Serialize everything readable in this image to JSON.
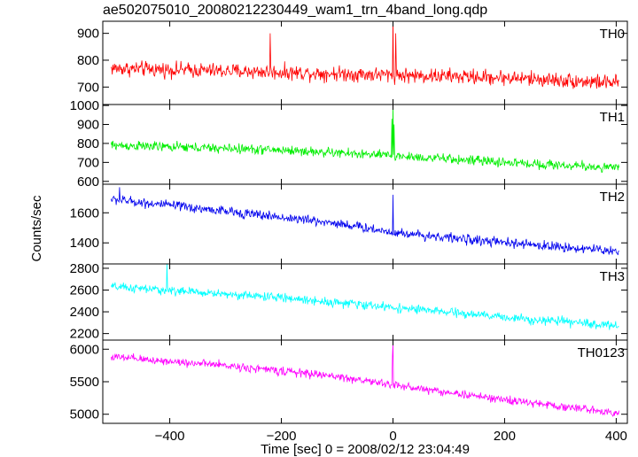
{
  "page_title": "ae502075010_20080212230449_wam1_trn_4band_long.qdp",
  "x_axis_label": "Time [sec] 0 = 2008/02/12 23:04:49",
  "y_axis_label": "Counts/sec",
  "chart_data": {
    "type": "line",
    "title": "ae502075010_20080212230449_wam1_trn_4band_long.qdp",
    "xlabel": "Time [sec] 0 = 2008/02/12 23:04:49",
    "ylabel": "Counts/sec",
    "xlim": [
      -520,
      420
    ],
    "x_ticks": [
      -400,
      -200,
      0,
      200,
      400
    ],
    "x_tick_labels": [
      "−400",
      "−200",
      "0",
      "200",
      "400"
    ],
    "x_sampling": {
      "start": -505,
      "end": 405,
      "step": 1
    },
    "panels": [
      {
        "name": "TH0",
        "color": "#ff0000",
        "ylim": [
          635,
          945
        ],
        "y_ticks": [
          700,
          800,
          900
        ],
        "y_tick_labels": [
          "700",
          "800",
          "900"
        ],
        "trend": [
          [
            -505,
            770
          ],
          [
            -200,
            755
          ],
          [
            0,
            745
          ],
          [
            200,
            735
          ],
          [
            405,
            715
          ]
        ],
        "noise_amplitude": 42,
        "spikes": [
          [
            -220,
            900
          ],
          [
            0,
            960
          ],
          [
            5,
            900
          ]
        ]
      },
      {
        "name": "TH1",
        "color": "#00ee00",
        "ylim": [
          585,
          1005
        ],
        "y_ticks": [
          600,
          700,
          800,
          900,
          1000
        ],
        "y_tick_labels": [
          "600",
          "700",
          "800",
          "900",
          "1000"
        ],
        "trend": [
          [
            -505,
            790
          ],
          [
            -200,
            765
          ],
          [
            0,
            735
          ],
          [
            200,
            700
          ],
          [
            405,
            670
          ]
        ],
        "noise_amplitude": 38,
        "spikes": [
          [
            0,
            1000
          ],
          [
            -2,
            930
          ],
          [
            2,
            900
          ]
        ]
      },
      {
        "name": "TH2",
        "color": "#0000ee",
        "ylim": [
          1260,
          1790
        ],
        "y_ticks": [
          1400,
          1600
        ],
        "y_tick_labels": [
          "1400",
          "1600"
        ],
        "trend": [
          [
            -505,
            1690
          ],
          [
            -300,
            1610
          ],
          [
            -100,
            1530
          ],
          [
            0,
            1470
          ],
          [
            200,
            1400
          ],
          [
            405,
            1345
          ]
        ],
        "noise_amplitude": 48,
        "spikes": [
          [
            0,
            1720
          ],
          [
            -490,
            1770
          ]
        ]
      },
      {
        "name": "TH3",
        "color": "#00ffff",
        "ylim": [
          2140,
          2840
        ],
        "y_ticks": [
          2200,
          2400,
          2600,
          2800
        ],
        "y_tick_labels": [
          "2200",
          "2400",
          "2600",
          "2800"
        ],
        "trend": [
          [
            -505,
            2630
          ],
          [
            -200,
            2530
          ],
          [
            0,
            2440
          ],
          [
            200,
            2350
          ],
          [
            405,
            2270
          ]
        ],
        "noise_amplitude": 60,
        "spikes": [
          [
            -405,
            2850
          ]
        ]
      },
      {
        "name": "TH0123",
        "color": "#ff00ff",
        "ylim": [
          4860,
          6140
        ],
        "y_ticks": [
          5000,
          5500,
          6000
        ],
        "y_tick_labels": [
          "5000",
          "5500",
          "6000"
        ],
        "trend": [
          [
            -505,
            5880
          ],
          [
            -300,
            5750
          ],
          [
            -100,
            5580
          ],
          [
            0,
            5450
          ],
          [
            200,
            5220
          ],
          [
            405,
            5020
          ]
        ],
        "noise_amplitude": 95,
        "spikes": [
          [
            0,
            6100
          ],
          [
            -1,
            5900
          ]
        ]
      }
    ]
  }
}
